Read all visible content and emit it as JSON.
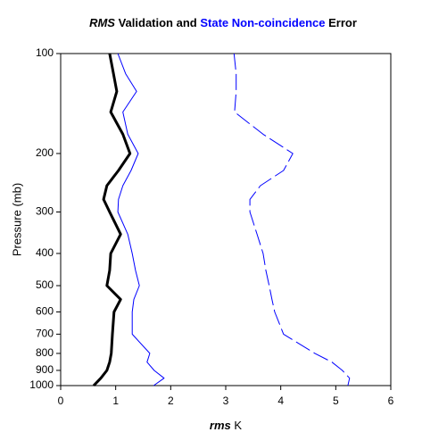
{
  "chart_data": {
    "type": "line",
    "title_parts": [
      {
        "text": "RMS",
        "color": "#000000",
        "italic": true
      },
      {
        "text": "Validation and",
        "color": "#000000",
        "italic": false
      },
      {
        "text": "State Non-coincidence",
        "color": "#0000ff",
        "italic": false
      },
      {
        "text": "Error",
        "color": "#000000",
        "italic": false
      }
    ],
    "xlabel_parts": [
      {
        "text": "rms",
        "italic": true,
        "bold": true
      },
      {
        "text": "K",
        "italic": false,
        "bold": false
      }
    ],
    "ylabel": "Pressure (mb)",
    "y": [
      100,
      115,
      130,
      150,
      175,
      200,
      225,
      250,
      275,
      300,
      350,
      400,
      450,
      500,
      550,
      600,
      700,
      800,
      850,
      900,
      950,
      1000
    ],
    "series": [
      {
        "color": "#000000",
        "width": 3,
        "dash": false,
        "values": [
          0.89,
          0.96,
          1.02,
          0.91,
          1.13,
          1.26,
          1.05,
          0.84,
          0.78,
          0.89,
          1.09,
          0.91,
          0.89,
          0.84,
          1.09,
          0.97,
          0.94,
          0.92,
          0.89,
          0.84,
          0.73,
          0.6
        ]
      },
      {
        "color": "#0000ff",
        "width": 1,
        "dash": false,
        "values": [
          1.04,
          1.18,
          1.38,
          1.13,
          1.22,
          1.41,
          1.28,
          1.13,
          1.05,
          1.04,
          1.22,
          1.3,
          1.36,
          1.43,
          1.33,
          1.3,
          1.3,
          1.62,
          1.57,
          1.7,
          1.88,
          1.69
        ]
      },
      {
        "color": "#0000ff",
        "width": 1,
        "dash": true,
        "values": [
          3.15,
          3.19,
          3.19,
          3.16,
          3.68,
          4.22,
          4.05,
          3.63,
          3.44,
          3.44,
          3.57,
          3.68,
          3.73,
          3.79,
          3.84,
          3.89,
          4.05,
          4.62,
          4.93,
          5.12,
          5.25,
          5.22
        ]
      }
    ],
    "xlim": [
      0,
      6
    ],
    "xticks": [
      0,
      1,
      2,
      3,
      4,
      5,
      6
    ],
    "ylim": [
      100,
      1000
    ],
    "yticks": [
      100,
      200,
      300,
      400,
      500,
      600,
      700,
      800,
      900,
      1000
    ],
    "ylog": true,
    "yinverted": true,
    "grid": false
  }
}
